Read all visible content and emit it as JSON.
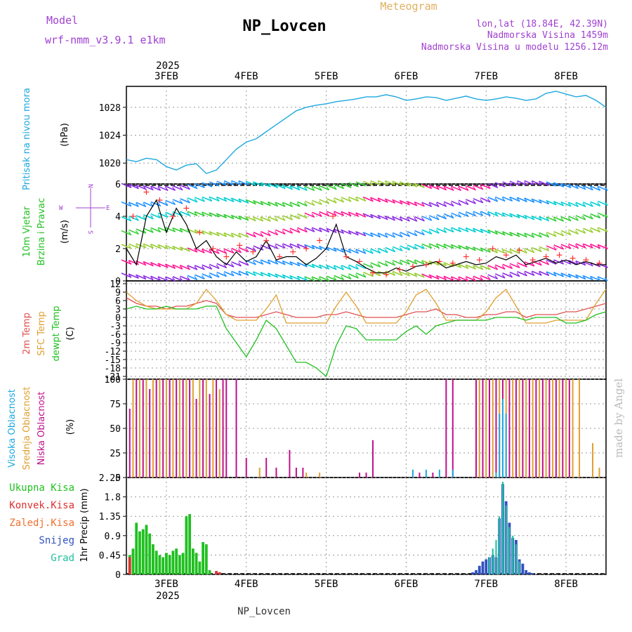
{
  "header": {
    "station": "NP_Lovcen",
    "product": "Meteogram",
    "model_label": "Model",
    "model_name": "wrf-nmm_v3.9.1  e1km",
    "lonlat": "lon,lat (18.84E, 42.39N)",
    "elevation": "Nadmorska Visina 1459m",
    "model_elevation": "Nadmorska Visina u modelu 1256.12m",
    "watermark": "made by Angel",
    "footer_station": "NP_Lovcen"
  },
  "colors": {
    "pressure": "#1ea8e0",
    "temp2m": "#e05050",
    "sfc_temp": "#e0a030",
    "dewpoint": "#20c020",
    "high_cloud": "#1ea8e0",
    "mid_cloud": "#e0a030",
    "low_cloud": "#c0108a",
    "total_precip": "#20c020",
    "conv_precip": "#e03030",
    "freezing_precip": "#f07030",
    "snow": "#3050c0",
    "graupel": "#20c0a0",
    "model_label": "#a040d0",
    "meteogram_title": "#e0b060"
  },
  "chart_data": [
    {
      "type": "line",
      "panel": "pressure",
      "ylabel_lines": [
        "Pritisak na nivou mora",
        "(hPa)"
      ],
      "ylim": [
        1017,
        1031
      ],
      "yticks": [
        1020,
        1024,
        1028
      ],
      "x_axis": {
        "units": "hours since 2025-02-02 12UTC",
        "range": [
          0,
          144
        ]
      },
      "x_tick_labels": [
        "3FEB",
        "4FEB",
        "5FEB",
        "6FEB",
        "7FEB",
        "8FEB"
      ],
      "year_label": "2025",
      "series": [
        {
          "color": "pressure",
          "x": [
            0,
            3,
            6,
            9,
            12,
            15,
            18,
            21,
            24,
            27,
            30,
            33,
            36,
            39,
            42,
            45,
            48,
            51,
            54,
            57,
            60,
            63,
            66,
            69,
            72,
            75,
            78,
            81,
            84,
            87,
            90,
            93,
            96,
            99,
            102,
            105,
            108,
            111,
            114,
            117,
            120,
            123,
            126,
            129,
            132,
            135,
            138,
            141,
            144
          ],
          "values": [
            1020.5,
            1020.2,
            1020.7,
            1020.5,
            1019.5,
            1019.0,
            1019.7,
            1019.9,
            1018.5,
            1019.0,
            1020.5,
            1022.0,
            1023.0,
            1023.5,
            1024.5,
            1025.5,
            1026.5,
            1027.5,
            1028.0,
            1028.3,
            1028.5,
            1028.8,
            1029.0,
            1029.2,
            1029.5,
            1029.5,
            1029.8,
            1029.5,
            1029.0,
            1029.2,
            1029.5,
            1029.4,
            1029.0,
            1029.3,
            1029.6,
            1029.2,
            1029.0,
            1029.2,
            1029.5,
            1029.3,
            1029.0,
            1029.2,
            1030.0,
            1030.3,
            1029.9,
            1029.5,
            1029.7,
            1029.0,
            1028.0
          ]
        }
      ]
    },
    {
      "type": "line",
      "panel": "wind",
      "ylabel_lines": [
        "10m Vjetar",
        "Brzina i Pravac",
        "(m/s)"
      ],
      "compass_labels": {
        "n": "N",
        "s": "S",
        "e": "E",
        "w": "W"
      },
      "ylim": [
        0,
        6
      ],
      "yticks": [
        0,
        2,
        4,
        6
      ],
      "x_axis": {
        "range": [
          0,
          144
        ]
      },
      "series": [
        {
          "name": "speed",
          "color": "#000000",
          "x": [
            0,
            3,
            6,
            9,
            12,
            15,
            18,
            21,
            24,
            27,
            30,
            33,
            36,
            39,
            42,
            45,
            48,
            51,
            54,
            57,
            60,
            63,
            66,
            69,
            72,
            75,
            78,
            81,
            84,
            87,
            90,
            93,
            96,
            99,
            102,
            105,
            108,
            111,
            114,
            117,
            120,
            123,
            126,
            129,
            132,
            135,
            138,
            141,
            144
          ],
          "values": [
            2.0,
            1.0,
            4.0,
            5.0,
            3.0,
            4.5,
            3.5,
            2.0,
            2.5,
            1.5,
            1.0,
            1.8,
            1.2,
            1.5,
            2.5,
            1.3,
            1.5,
            1.5,
            1.0,
            1.4,
            2.0,
            3.5,
            1.5,
            1.2,
            0.8,
            0.5,
            0.5,
            0.8,
            0.6,
            0.9,
            1.0,
            1.2,
            0.8,
            1.0,
            1.2,
            1.0,
            1.1,
            1.5,
            1.3,
            1.6,
            1.0,
            1.2,
            1.4,
            1.1,
            1.3,
            1.0,
            1.2,
            1.0,
            1.0
          ]
        },
        {
          "name": "gust",
          "color": "#ff3030",
          "x": [
            2,
            6,
            10,
            14,
            18,
            22,
            26,
            30,
            34,
            38,
            42,
            46,
            50,
            54,
            58,
            62,
            66,
            70,
            74,
            78,
            82,
            86,
            90,
            94,
            98,
            102,
            106,
            110,
            114,
            118,
            122,
            126,
            130,
            134,
            138,
            142
          ],
          "values": [
            4.0,
            5.5,
            5.0,
            4.0,
            4.5,
            3.0,
            2.0,
            1.5,
            2.2,
            1.8,
            2.5,
            1.5,
            1.8,
            2.0,
            2.5,
            4.0,
            1.5,
            1.2,
            0.5,
            0.4,
            0.7,
            0.9,
            1.0,
            1.2,
            1.1,
            1.5,
            1.3,
            2.0,
            1.6,
            1.9,
            1.3,
            1.5,
            1.6,
            1.4,
            1.3,
            1.1
          ]
        }
      ]
    },
    {
      "type": "line",
      "panel": "temperature",
      "ylabel_lines": [
        "2m Temp",
        "SFC Temp",
        "dewpt Temp",
        "(C)"
      ],
      "ylim": [
        -22,
        13
      ],
      "yticks": [
        12,
        9,
        6,
        3,
        0,
        -3,
        -6,
        -9,
        -12,
        -15,
        -18,
        -21
      ],
      "x_axis": {
        "range": [
          0,
          144
        ]
      },
      "series": [
        {
          "name": "2m Temp",
          "color": "temp2m",
          "x": [
            0,
            3,
            6,
            9,
            12,
            15,
            18,
            21,
            24,
            27,
            30,
            33,
            36,
            39,
            42,
            45,
            48,
            51,
            54,
            57,
            60,
            63,
            66,
            69,
            72,
            75,
            78,
            81,
            84,
            87,
            90,
            93,
            96,
            99,
            102,
            105,
            108,
            111,
            114,
            117,
            120,
            123,
            126,
            129,
            132,
            135,
            138,
            141,
            144
          ],
          "values": [
            7,
            5,
            4,
            4,
            3,
            4,
            4,
            5,
            6,
            5,
            1,
            0,
            0,
            0,
            1,
            2,
            1,
            0,
            0,
            0,
            1,
            1,
            2,
            1,
            0,
            0,
            0,
            0,
            1,
            2,
            2,
            3,
            1,
            1,
            0,
            0,
            1,
            1,
            2,
            2,
            0,
            1,
            1,
            1,
            2,
            2,
            3,
            4,
            5
          ]
        },
        {
          "name": "SFC Temp",
          "color": "sfc_temp",
          "x": [
            0,
            3,
            6,
            9,
            12,
            15,
            18,
            21,
            24,
            27,
            30,
            33,
            36,
            39,
            42,
            45,
            48,
            51,
            54,
            57,
            60,
            63,
            66,
            69,
            72,
            75,
            78,
            81,
            84,
            87,
            90,
            93,
            96,
            99,
            102,
            105,
            108,
            111,
            114,
            117,
            120,
            123,
            126,
            129,
            132,
            135,
            138,
            141,
            144
          ],
          "values": [
            9,
            6,
            4,
            3,
            3,
            3,
            3,
            5,
            10,
            6,
            1,
            -1,
            -1,
            -1,
            3,
            8,
            -2,
            -2,
            -2,
            -2,
            -2,
            4,
            9,
            4,
            -2,
            -2,
            -2,
            -2,
            2,
            8,
            10,
            5,
            -1,
            -1,
            -1,
            -1,
            2,
            7,
            10,
            4,
            -2,
            -2,
            -2,
            -1,
            -1,
            -1,
            -1,
            5,
            10
          ]
        },
        {
          "name": "dewpt Temp",
          "color": "dewpoint",
          "x": [
            0,
            3,
            6,
            9,
            12,
            15,
            18,
            21,
            24,
            27,
            30,
            33,
            36,
            39,
            42,
            45,
            48,
            51,
            54,
            57,
            60,
            63,
            66,
            69,
            72,
            75,
            78,
            81,
            84,
            87,
            90,
            93,
            96,
            99,
            102,
            105,
            108,
            111,
            114,
            117,
            120,
            123,
            126,
            129,
            132,
            135,
            138,
            141,
            144
          ],
          "values": [
            3,
            4,
            3,
            3,
            4,
            3,
            3,
            3,
            4,
            4,
            -4,
            -9,
            -14,
            -8,
            -1,
            -4,
            -10,
            -16,
            -16,
            -18,
            -21,
            -10,
            -3,
            -4,
            -8,
            -8,
            -8,
            -8,
            -5,
            -3,
            -6,
            -3,
            -2,
            -1,
            -1,
            -1,
            -1,
            0,
            0,
            0,
            -1,
            0,
            0,
            0,
            -2,
            -2,
            -1,
            1,
            2
          ]
        }
      ]
    },
    {
      "type": "bar",
      "panel": "clouds",
      "ylabel_lines": [
        "Visoka Oblacnost",
        "Srednja Oblacnost",
        "Niska Oblacnost",
        "(%)"
      ],
      "ylim": [
        0,
        100
      ],
      "yticks": [
        0,
        25,
        50,
        75,
        100
      ],
      "x_axis": {
        "range": [
          0,
          144
        ]
      },
      "series": [
        {
          "name": "Niska Oblacnost",
          "color": "low_cloud",
          "x": [
            1,
            3,
            5,
            7,
            9,
            11,
            13,
            15,
            17,
            19,
            21,
            23,
            25,
            27,
            29,
            30,
            33,
            36,
            42,
            45,
            49,
            51,
            53,
            70,
            72,
            74,
            88,
            92,
            96,
            98,
            105,
            107,
            109,
            111,
            113,
            115,
            117,
            119,
            121,
            123,
            125,
            127,
            129,
            131,
            133
          ],
          "values": [
            70,
            100,
            100,
            90,
            100,
            100,
            100,
            100,
            100,
            100,
            80,
            100,
            85,
            100,
            100,
            100,
            100,
            20,
            20,
            10,
            28,
            10,
            10,
            5,
            5,
            38,
            5,
            5,
            100,
            100,
            100,
            100,
            100,
            100,
            100,
            100,
            100,
            100,
            100,
            100,
            100,
            100,
            100,
            100,
            100
          ]
        },
        {
          "name": "Srednja Oblacnost",
          "color": "mid_cloud",
          "x": [
            2,
            4,
            6,
            8,
            10,
            12,
            14,
            16,
            18,
            20,
            22,
            24,
            26,
            28,
            40,
            54,
            58,
            106,
            108,
            110,
            112,
            114,
            116,
            118,
            120,
            122,
            124,
            126,
            128,
            130,
            132,
            134,
            136,
            140,
            142
          ],
          "values": [
            100,
            100,
            100,
            100,
            100,
            100,
            100,
            100,
            100,
            100,
            100,
            100,
            100,
            90,
            10,
            5,
            5,
            100,
            100,
            100,
            100,
            100,
            100,
            100,
            100,
            100,
            100,
            100,
            100,
            100,
            100,
            100,
            100,
            35,
            10
          ]
        },
        {
          "name": "Visoka Oblacnost",
          "color": "high_cloud",
          "x": [
            86,
            90,
            94,
            98,
            111,
            112,
            113,
            114
          ],
          "values": [
            8,
            8,
            8,
            8,
            5,
            65,
            80,
            65
          ]
        }
      ]
    },
    {
      "type": "bar",
      "panel": "precipitation",
      "ylabel_lines": [
        "1hr Precip (mm)"
      ],
      "legend": [
        "Ukupna Kisa",
        "Konvek.Kisa",
        "Zaledj.Kisa",
        "Snijeg",
        "Grad"
      ],
      "ylim": [
        0,
        2.25
      ],
      "yticks": [
        0,
        0.45,
        0.9,
        1.35,
        1.8,
        2.25
      ],
      "x_axis": {
        "range": [
          0,
          144
        ]
      },
      "x_tick_labels": [
        "3FEB",
        "4FEB",
        "5FEB",
        "6FEB",
        "7FEB",
        "8FEB"
      ],
      "year_label": "2025",
      "series": [
        {
          "name": "Ukupna Kisa",
          "color": "total_precip",
          "x": [
            1,
            2,
            3,
            4,
            5,
            6,
            7,
            8,
            9,
            10,
            11,
            12,
            13,
            14,
            15,
            16,
            17,
            18,
            19,
            20,
            21,
            22,
            23,
            24,
            25
          ],
          "values": [
            0.45,
            0.6,
            1.2,
            1.0,
            1.05,
            1.15,
            0.95,
            0.7,
            0.55,
            0.45,
            0.4,
            0.5,
            0.45,
            0.55,
            0.6,
            0.45,
            0.5,
            1.35,
            1.4,
            0.6,
            0.5,
            0.3,
            0.75,
            0.7,
            0.1
          ]
        },
        {
          "name": "Konvek.Kisa",
          "color": "conv_precip",
          "x": [
            1,
            27,
            28
          ],
          "values": [
            0.4,
            0.08,
            0.05
          ]
        },
        {
          "name": "Snijeg",
          "color": "snow",
          "x": [
            104,
            105,
            106,
            107,
            108,
            109,
            110,
            111,
            112,
            113,
            114,
            115,
            116,
            117,
            118,
            119,
            120,
            121,
            122
          ],
          "values": [
            0.05,
            0.1,
            0.2,
            0.3,
            0.35,
            0.4,
            0.45,
            0.4,
            1.3,
            2.1,
            1.7,
            1.2,
            0.85,
            0.8,
            0.35,
            0.25,
            0.1,
            0.05,
            0.03
          ]
        },
        {
          "name": "Grad",
          "color": "graupel",
          "x": [
            109,
            110,
            111,
            112,
            113,
            114,
            115,
            116,
            117,
            118
          ],
          "values": [
            0.4,
            0.6,
            0.8,
            1.35,
            2.15,
            1.6,
            1.1,
            0.9,
            0.7,
            0.3
          ]
        }
      ]
    }
  ]
}
